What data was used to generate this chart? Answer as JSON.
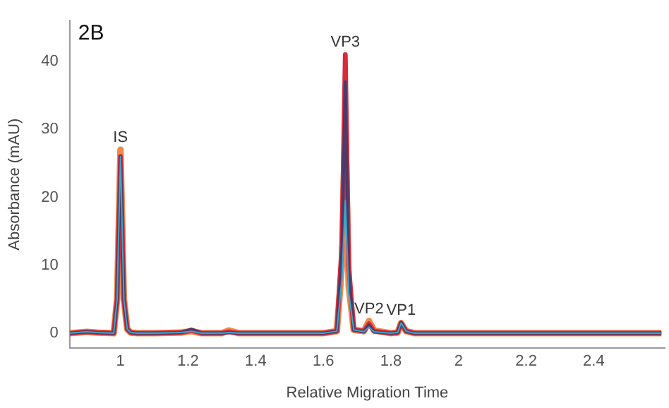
{
  "chart_data": {
    "type": "line",
    "xlabel": "Relative Migration Time",
    "ylabel": "Absorbance (mAU)",
    "x": [
      0.85,
      0.9,
      0.93,
      0.98,
      0.99,
      1.0,
      1.01,
      1.02,
      1.03,
      1.05,
      1.1,
      1.18,
      1.21,
      1.24,
      1.3,
      1.32,
      1.35,
      1.42,
      1.5,
      1.6,
      1.64,
      1.655,
      1.665,
      1.675,
      1.69,
      1.72,
      1.735,
      1.75,
      1.8,
      1.82,
      1.83,
      1.845,
      1.87,
      2.0,
      2.25,
      2.38,
      2.6
    ],
    "series": [
      {
        "color": "#f08a4b",
        "values": [
          0,
          0.2,
          0.1,
          0,
          5,
          27,
          5,
          0.6,
          0.1,
          0,
          0,
          0.1,
          0.3,
          0,
          0,
          0.4,
          0,
          0,
          0,
          0,
          0.3,
          10,
          31,
          7,
          0.5,
          0.3,
          1.8,
          0.4,
          0,
          0.1,
          1.5,
          0.3,
          0,
          0,
          0,
          0,
          0
        ]
      },
      {
        "color": "#d92b3a",
        "values": [
          0,
          0.2,
          0.1,
          0,
          5,
          26,
          5,
          0.6,
          0.1,
          0,
          0,
          0.1,
          0.4,
          0,
          0,
          0.2,
          0,
          0,
          0,
          0,
          0.3,
          13,
          41,
          10,
          0.5,
          0.3,
          1.4,
          0.3,
          0,
          0.1,
          1.5,
          0.3,
          0,
          0,
          0,
          0,
          0
        ]
      },
      {
        "color": "#4a3b6b",
        "values": [
          0,
          0.2,
          0.1,
          0,
          5,
          26,
          5,
          0.6,
          0.1,
          0,
          0,
          0.1,
          0.6,
          0,
          0,
          0.1,
          0,
          0,
          0,
          0,
          0.3,
          12,
          37,
          9,
          0.5,
          0.2,
          1.2,
          0.2,
          0,
          0.1,
          1.6,
          0.3,
          0,
          0,
          0,
          0,
          0
        ]
      },
      {
        "color": "#3aa8cc",
        "values": [
          0,
          0.2,
          0.1,
          0,
          5,
          26,
          5,
          0.6,
          0.1,
          0,
          0,
          0.1,
          0.3,
          0,
          0,
          0.1,
          0,
          0,
          0,
          0,
          0.3,
          8,
          19.5,
          6,
          0.5,
          0.2,
          0.9,
          0.2,
          0,
          0.1,
          1.5,
          0.3,
          0,
          0,
          0,
          0,
          0
        ]
      }
    ],
    "xlim": [
      0.85,
      2.61
    ],
    "xticks": [
      1,
      1.2,
      1.4,
      1.6,
      1.8,
      2,
      2.2,
      2.4
    ],
    "ylim": [
      -2.2,
      46
    ],
    "yticks": [
      0,
      10,
      20,
      30,
      40
    ],
    "grid": false,
    "legend": false,
    "marker": "none",
    "line_style": "solid",
    "annotations": [
      "2B",
      {
        "text": "IS",
        "x": 1.0,
        "y": 27
      },
      {
        "text": "VP3",
        "x": 1.665,
        "y": 41
      },
      {
        "text": "VP2",
        "x": 1.735,
        "y": 1.8
      },
      {
        "text": "VP1",
        "x": 1.83,
        "y": 1.6
      }
    ]
  }
}
